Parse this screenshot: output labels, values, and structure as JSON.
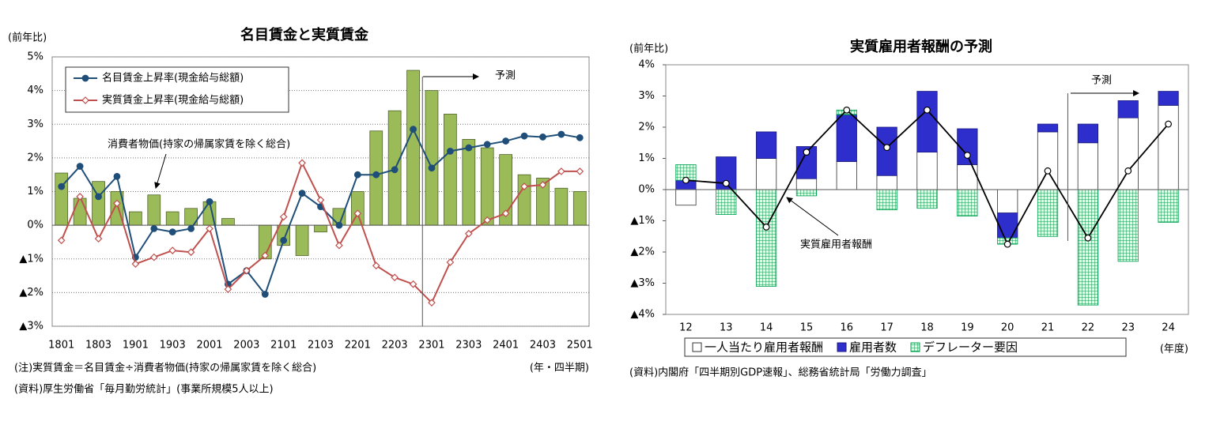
{
  "chart_data": [
    {
      "type": "combo",
      "title": "名目賃金と実質賃金",
      "ylabel": "(前年比)",
      "xlabel": "(年・四半期)",
      "categories": [
        "1801",
        null,
        "1803",
        null,
        "1901",
        null,
        "1903",
        null,
        "2001",
        null,
        "2003",
        null,
        "2101",
        null,
        "2103",
        null,
        "2201",
        null,
        "2203",
        null,
        "2301",
        null,
        "2303",
        null,
        "2401",
        null,
        "2403",
        null,
        "2501"
      ],
      "ylim": [
        -3,
        5
      ],
      "yticks": [
        {
          "value": -3,
          "label": "▲3%"
        },
        {
          "value": -2,
          "label": "▲2%"
        },
        {
          "value": -1,
          "label": "▲1%"
        },
        {
          "value": 0,
          "label": "0%"
        },
        {
          "value": 1,
          "label": "1%"
        },
        {
          "value": 2,
          "label": "2%"
        },
        {
          "value": 3,
          "label": "3%"
        },
        {
          "value": 4,
          "label": "4%"
        },
        {
          "value": 5,
          "label": "5%"
        }
      ],
      "grid": true,
      "legend": "upper left",
      "series": [
        {
          "type": "bar",
          "color": "#9bbb59",
          "values": [
            1.55,
            0.8,
            1.3,
            1.0,
            0.4,
            0.9,
            0.4,
            0.5,
            0.7,
            0.2,
            0.0,
            -1.0,
            -0.6,
            -0.9,
            -0.2,
            0.5,
            1.0,
            2.8,
            3.4,
            4.6,
            4.0,
            3.3,
            2.55,
            2.3,
            2.1,
            1.5,
            1.4,
            1.1,
            1.0
          ]
        },
        {
          "type": "line",
          "name": "名目賃金上昇率(現金給与総額)",
          "color": "#1f4e79",
          "marker": "circle",
          "values": [
            1.15,
            1.75,
            0.85,
            1.45,
            -0.95,
            -0.1,
            -0.2,
            -0.1,
            0.7,
            -1.75,
            -1.35,
            -2.05,
            -0.45,
            0.95,
            0.55,
            0.0,
            1.5,
            1.5,
            1.65,
            2.85,
            1.7,
            2.2,
            2.3,
            2.4,
            2.5,
            2.65,
            2.62,
            2.7,
            2.6
          ]
        },
        {
          "type": "line",
          "name": "実質賃金上昇率(現金給与総額)",
          "color": "#c0504d",
          "marker": "diamond",
          "values": [
            -0.45,
            0.85,
            -0.4,
            0.65,
            -1.15,
            -0.95,
            -0.75,
            -0.8,
            -0.1,
            -1.9,
            -1.35,
            -0.9,
            0.25,
            1.85,
            0.75,
            -0.6,
            0.35,
            -1.2,
            -1.55,
            -1.75,
            -2.3,
            -1.1,
            -0.25,
            0.15,
            0.35,
            1.15,
            1.2,
            1.6,
            1.6
          ]
        }
      ],
      "annotations": [
        "消費者物価(持家の帰属家賃を除く総合)",
        "予測"
      ],
      "notes": [
        "(注)実質賃金＝名目賃金÷消費者物価(持家の帰属家賃を除く総合)",
        "(資料)厚生労働省「毎月勤労統計」(事業所規模5人以上)"
      ]
    },
    {
      "type": "combo",
      "stacked": true,
      "title": "実質雇用者報酬の予測",
      "ylabel": "(前年比)",
      "xlabel": "(年度)",
      "categories": [
        "12",
        "13",
        "14",
        "15",
        "16",
        "17",
        "18",
        "19",
        "20",
        "21",
        "22",
        "23",
        "24"
      ],
      "ylim": [
        -4,
        4
      ],
      "yticks": [
        {
          "value": -4,
          "label": "▲4%"
        },
        {
          "value": -3,
          "label": "▲3%"
        },
        {
          "value": -2,
          "label": "▲2%"
        },
        {
          "value": -1,
          "label": "▲1%"
        },
        {
          "value": 0,
          "label": "0%"
        },
        {
          "value": 1,
          "label": "1%"
        },
        {
          "value": 2,
          "label": "2%"
        },
        {
          "value": 3,
          "label": "3%"
        },
        {
          "value": 4,
          "label": "4%"
        }
      ],
      "grid": false,
      "legend": "bottom",
      "series": [
        {
          "type": "bar",
          "name": "一人当たり雇用者報酬",
          "color": "#ffffff",
          "values": [
            -0.5,
            0.0,
            1.0,
            0.35,
            0.9,
            0.45,
            1.2,
            0.8,
            -0.75,
            1.85,
            1.5,
            2.3,
            2.7
          ]
        },
        {
          "type": "bar",
          "name": "雇用者数",
          "color": "#2e2ecc",
          "values": [
            0.3,
            1.05,
            0.85,
            1.03,
            1.5,
            1.55,
            1.95,
            1.15,
            -0.8,
            0.25,
            0.6,
            0.55,
            0.45
          ]
        },
        {
          "type": "bar",
          "name": "デフレーター要因",
          "color": "#00a050",
          "pattern": "grid",
          "values": [
            0.5,
            -0.8,
            -3.1,
            -0.2,
            0.15,
            -0.65,
            -0.6,
            -0.85,
            -0.2,
            -1.5,
            -3.7,
            -2.3,
            -1.05
          ]
        },
        {
          "type": "line",
          "color": "#000000",
          "marker": "circle",
          "values": [
            0.3,
            0.2,
            -1.2,
            1.2,
            2.55,
            1.35,
            2.55,
            1.1,
            -1.75,
            0.6,
            -1.55,
            0.6,
            2.1
          ]
        }
      ],
      "annotations": [
        "実質雇用者報酬",
        "予測"
      ],
      "notes": [
        "(資料)内閣府「四半期別GDP速報」、総務省統計局「労働力調査」"
      ]
    }
  ]
}
